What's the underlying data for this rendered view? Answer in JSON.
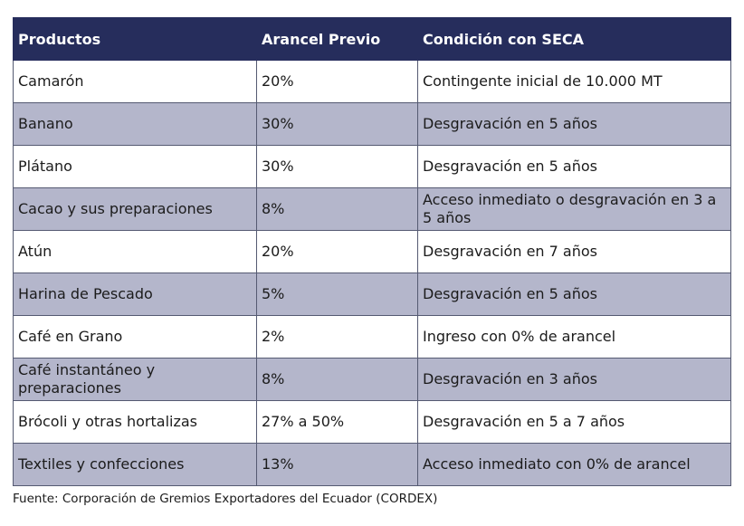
{
  "table": {
    "headers": [
      "Productos",
      "Arancel Previo",
      "Condición con SECA"
    ],
    "rows": [
      [
        "Camarón",
        "20%",
        "Contingente inicial de 10.000 MT"
      ],
      [
        "Banano",
        "30%",
        "Desgravación en 5 años"
      ],
      [
        "Plátano",
        "30%",
        "Desgravación en 5 años"
      ],
      [
        "Cacao y sus preparaciones",
        "8%",
        "Acceso inmediato o desgravación en 3 a 5 años"
      ],
      [
        "Atún",
        "20%",
        "Desgravación en 7 años"
      ],
      [
        "Harina de Pescado",
        "5%",
        "Desgravación en 5 años"
      ],
      [
        "Café en Grano",
        "2%",
        "Ingreso con 0% de arancel"
      ],
      [
        "Café instantáneo y preparaciones",
        "8%",
        "Desgravación en 3 años"
      ],
      [
        "Brócoli y otras hortalizas",
        "27% a 50%",
        "Desgravación en 5 a 7 años"
      ],
      [
        "Textiles y confecciones",
        "13%",
        "Acceso inmediato con 0% de arancel"
      ]
    ]
  },
  "source_note": "Fuente: Corporación de Gremios Exportadores del Ecuador (CORDEX)",
  "colors": {
    "header_bg": "#262d5c",
    "alt_row_bg": "#b4b6cb",
    "row_bg": "#ffffff"
  }
}
